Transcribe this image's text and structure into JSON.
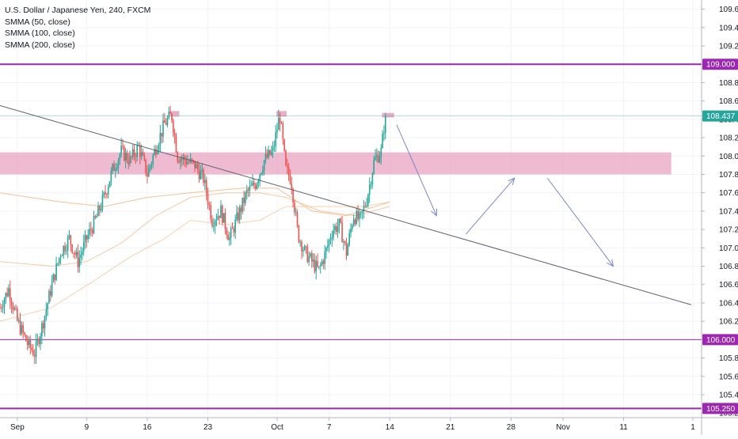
{
  "legend": {
    "title": "U.S. Dollar / Japanese Yen, 240, FXCM",
    "studies": [
      "SMMA (50, close)",
      "SMMA (100, close)",
      "SMMA (200, close)"
    ]
  },
  "colors": {
    "bull": "#26a69a",
    "bear": "#ef5350",
    "level": "#9c27b0",
    "zone": "#e8a4c0",
    "trendline": "#5d606b",
    "arrow": "#7b86c9",
    "current": "#26a69a",
    "smma": "#f5b07a"
  },
  "chart_data": {
    "type": "candlestick",
    "symbol": "U.S. Dollar / Japanese Yen, 240, FXCM",
    "x_ticks": [
      "Sep",
      "9",
      "16",
      "23",
      "Oct",
      "7",
      "14",
      "21",
      "28",
      "Nov",
      "11",
      "1"
    ],
    "x_tick_days": [
      0,
      8,
      15,
      22,
      30,
      36,
      43,
      50,
      57,
      63,
      70,
      78
    ],
    "x_range_days": [
      -2,
      79
    ],
    "y_range": [
      105.15,
      109.7
    ],
    "y_ticks": [
      105.2,
      105.4,
      105.6,
      105.8,
      106.0,
      106.2,
      106.4,
      106.6,
      106.8,
      107.0,
      107.2,
      107.4,
      107.6,
      107.8,
      108.0,
      108.2,
      108.4,
      108.6,
      108.8,
      109.0,
      109.2,
      109.4,
      109.6
    ],
    "price_key_points": [
      {
        "day": -2.0,
        "price": 106.35
      },
      {
        "day": -1.0,
        "price": 106.55
      },
      {
        "day": 0.0,
        "price": 106.2
      },
      {
        "day": 1.2,
        "price": 105.95
      },
      {
        "day": 2.0,
        "price": 105.85
      },
      {
        "day": 3.0,
        "price": 106.2
      },
      {
        "day": 4.0,
        "price": 106.6
      },
      {
        "day": 5.0,
        "price": 106.95
      },
      {
        "day": 6.0,
        "price": 107.1
      },
      {
        "day": 7.0,
        "price": 106.85
      },
      {
        "day": 8.0,
        "price": 107.1
      },
      {
        "day": 9.0,
        "price": 107.3
      },
      {
        "day": 10.0,
        "price": 107.55
      },
      {
        "day": 11.0,
        "price": 107.85
      },
      {
        "day": 12.0,
        "price": 108.05
      },
      {
        "day": 13.0,
        "price": 107.95
      },
      {
        "day": 14.0,
        "price": 108.1
      },
      {
        "day": 15.0,
        "price": 107.8
      },
      {
        "day": 16.0,
        "price": 108.1
      },
      {
        "day": 17.0,
        "price": 108.35
      },
      {
        "day": 17.8,
        "price": 108.45
      },
      {
        "day": 18.5,
        "price": 108.0
      },
      {
        "day": 19.5,
        "price": 107.95
      },
      {
        "day": 20.5,
        "price": 107.9
      },
      {
        "day": 21.5,
        "price": 107.75
      },
      {
        "day": 22.5,
        "price": 107.3
      },
      {
        "day": 23.5,
        "price": 107.4
      },
      {
        "day": 24.5,
        "price": 107.1
      },
      {
        "day": 25.5,
        "price": 107.35
      },
      {
        "day": 26.5,
        "price": 107.6
      },
      {
        "day": 27.5,
        "price": 107.7
      },
      {
        "day": 28.5,
        "price": 107.95
      },
      {
        "day": 29.5,
        "price": 108.05
      },
      {
        "day": 30.3,
        "price": 108.45
      },
      {
        "day": 31.0,
        "price": 107.85
      },
      {
        "day": 31.6,
        "price": 107.75
      },
      {
        "day": 32.4,
        "price": 107.15
      },
      {
        "day": 33.2,
        "price": 106.95
      },
      {
        "day": 34.0,
        "price": 106.85
      },
      {
        "day": 34.8,
        "price": 106.75
      },
      {
        "day": 35.6,
        "price": 106.95
      },
      {
        "day": 36.4,
        "price": 107.2
      },
      {
        "day": 37.2,
        "price": 107.25
      },
      {
        "day": 38.0,
        "price": 106.95
      },
      {
        "day": 38.8,
        "price": 107.35
      },
      {
        "day": 39.6,
        "price": 107.3
      },
      {
        "day": 40.4,
        "price": 107.55
      },
      {
        "day": 41.2,
        "price": 107.95
      },
      {
        "day": 42.0,
        "price": 108.05
      },
      {
        "day": 42.5,
        "price": 108.45
      }
    ],
    "smma_series": [
      {
        "name": "SMMA (50, close)",
        "points": [
          {
            "day": -2,
            "price": 107.6
          },
          {
            "day": 5,
            "price": 107.5
          },
          {
            "day": 10,
            "price": 107.45
          },
          {
            "day": 15,
            "price": 107.55
          },
          {
            "day": 20,
            "price": 107.6
          },
          {
            "day": 26,
            "price": 107.65
          },
          {
            "day": 30,
            "price": 107.65
          },
          {
            "day": 34,
            "price": 107.4
          },
          {
            "day": 38,
            "price": 107.35
          },
          {
            "day": 43,
            "price": 107.5
          }
        ]
      },
      {
        "name": "SMMA (100, close)",
        "points": [
          {
            "day": -2,
            "price": 106.85
          },
          {
            "day": 4,
            "price": 106.8
          },
          {
            "day": 8,
            "price": 106.85
          },
          {
            "day": 12,
            "price": 107.05
          },
          {
            "day": 16,
            "price": 107.35
          },
          {
            "day": 20,
            "price": 107.55
          },
          {
            "day": 24,
            "price": 107.6
          },
          {
            "day": 28,
            "price": 107.6
          },
          {
            "day": 31,
            "price": 107.55
          },
          {
            "day": 35,
            "price": 107.4
          },
          {
            "day": 39,
            "price": 107.35
          },
          {
            "day": 43,
            "price": 107.45
          }
        ]
      },
      {
        "name": "SMMA (200, close)",
        "points": [
          {
            "day": -2,
            "price": 106.2
          },
          {
            "day": 4,
            "price": 106.35
          },
          {
            "day": 9,
            "price": 106.65
          },
          {
            "day": 13,
            "price": 106.9
          },
          {
            "day": 17,
            "price": 107.1
          },
          {
            "day": 20,
            "price": 107.3
          },
          {
            "day": 24,
            "price": 107.25
          },
          {
            "day": 28,
            "price": 107.3
          },
          {
            "day": 31,
            "price": 107.45
          },
          {
            "day": 36,
            "price": 107.45
          },
          {
            "day": 40,
            "price": 107.45
          },
          {
            "day": 43,
            "price": 107.5
          }
        ]
      }
    ],
    "horizontal_levels": [
      {
        "price": 109.0,
        "label": "109.000",
        "weight": "thick"
      },
      {
        "price": 106.0,
        "label": "106.000",
        "weight": "thin"
      },
      {
        "price": 105.25,
        "label": "105.250",
        "weight": "thick"
      }
    ],
    "current_price": {
      "price": 108.437,
      "label": "108.437"
    },
    "resistance_zone": {
      "day_from": -2,
      "day_to": 75.5,
      "price_from": 107.8,
      "price_to": 108.04
    },
    "top_markers": [
      {
        "day_from": 17.6,
        "day_to": 18.7,
        "price_from": 108.43,
        "price_to": 108.49
      },
      {
        "day_from": 29.9,
        "day_to": 31.1,
        "price_from": 108.43,
        "price_to": 108.49
      },
      {
        "day_from": 42.1,
        "day_to": 43.5,
        "price_from": 108.42,
        "price_to": 108.47
      }
    ],
    "trendline": {
      "day_from": -2,
      "price_from": 108.55,
      "day_to": 77.8,
      "price_to": 106.38
    },
    "projection_arrows": [
      {
        "from_day": 43.8,
        "from_price": 108.34,
        "to_day": 48.4,
        "to_price": 107.35
      },
      {
        "from_day": 51.8,
        "from_price": 107.15,
        "to_day": 57.4,
        "to_price": 107.76
      },
      {
        "from_day": 61.2,
        "from_price": 107.76,
        "to_day": 68.8,
        "to_price": 106.8
      }
    ]
  }
}
